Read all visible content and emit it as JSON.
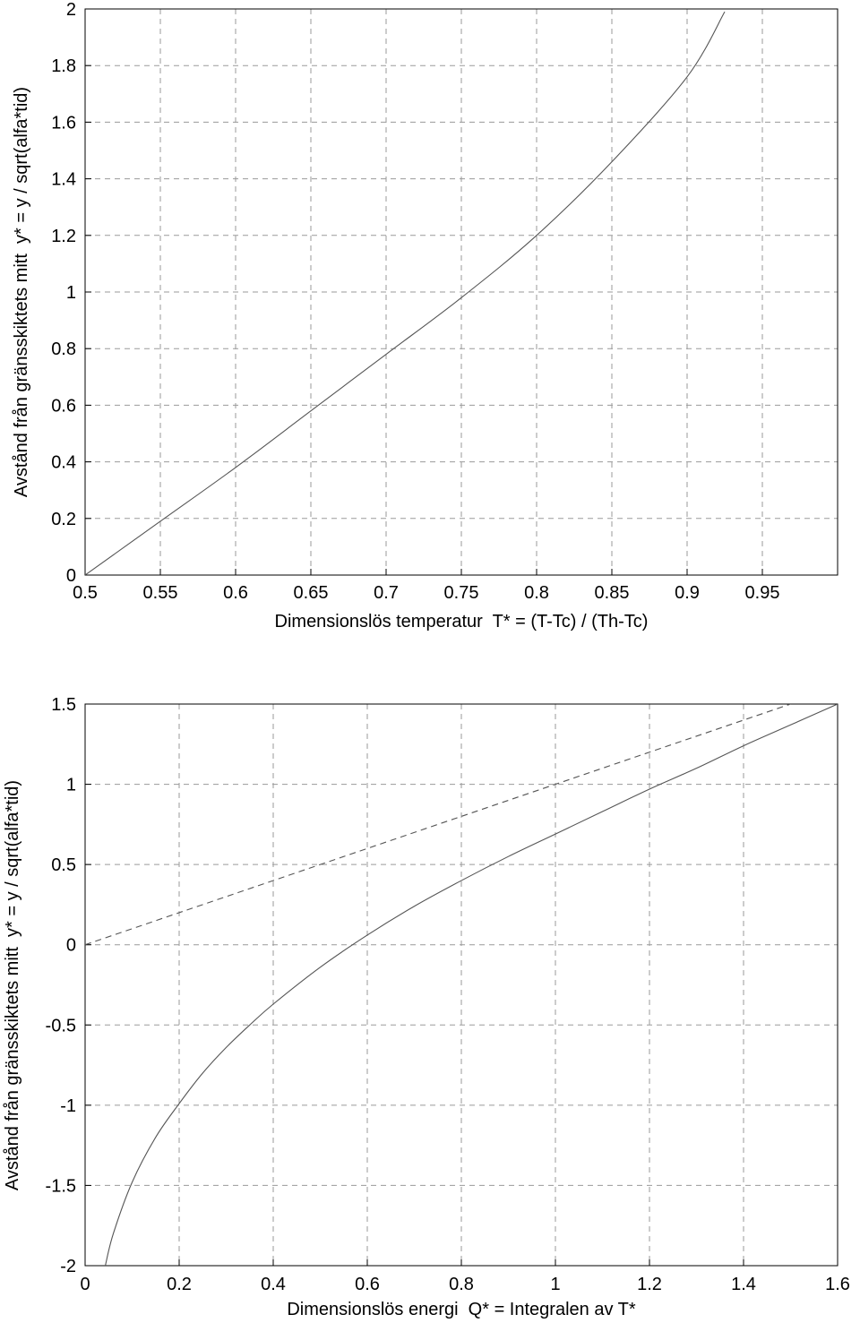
{
  "chart_data": [
    {
      "type": "line",
      "title": "",
      "xlabel": "Dimensionslös temperatur  T* = (T-Tc) / (Th-Tc)",
      "ylabel": "Avstånd från gränsskiktets mitt  y* = y / sqrt(alfa*tid)",
      "xlim": [
        0.5,
        1.0
      ],
      "ylim": [
        0,
        2
      ],
      "xticks": [
        "0.5",
        "0.55",
        "0.6",
        "0.65",
        "0.7",
        "0.75",
        "0.8",
        "0.85",
        "0.9",
        "0.95"
      ],
      "xtick_values": [
        0.5,
        0.55,
        0.6,
        0.65,
        0.7,
        0.75,
        0.8,
        0.85,
        0.9,
        0.95
      ],
      "yticks": [
        "0",
        "0.2",
        "0.4",
        "0.6",
        "0.8",
        "1",
        "1.2",
        "1.4",
        "1.6",
        "1.8",
        "2"
      ],
      "ytick_values": [
        0,
        0.2,
        0.4,
        0.6,
        0.8,
        1.0,
        1.2,
        1.4,
        1.6,
        1.8,
        2.0
      ],
      "grid": true,
      "series": [
        {
          "style": "solid",
          "x": [
            0.5,
            0.55,
            0.6,
            0.65,
            0.7,
            0.75,
            0.8,
            0.85,
            0.9,
            0.925
          ],
          "y": [
            0.0,
            0.19,
            0.38,
            0.58,
            0.78,
            0.98,
            1.2,
            1.46,
            1.76,
            1.99
          ]
        }
      ]
    },
    {
      "type": "line",
      "title": "",
      "xlabel": "Dimensionslös energi  Q* = Integralen av T*",
      "ylabel": "Avstånd från gränsskiktets mitt  y* = y / sqrt(alfa*tid)",
      "xlim": [
        0,
        1.6
      ],
      "ylim": [
        -2,
        1.5
      ],
      "xticks": [
        "0",
        "0.2",
        "0.4",
        "0.6",
        "0.8",
        "1",
        "1.2",
        "1.4",
        "1.6"
      ],
      "xtick_values": [
        0,
        0.2,
        0.4,
        0.6,
        0.8,
        1.0,
        1.2,
        1.4,
        1.6
      ],
      "yticks": [
        "1.5",
        "1",
        "0.5",
        "0",
        "-0.5",
        "-1",
        "-1.5",
        "-2"
      ],
      "ytick_values": [
        1.5,
        1.0,
        0.5,
        0.0,
        -0.5,
        -1.0,
        -1.5,
        -2.0
      ],
      "grid": true,
      "series": [
        {
          "style": "solid",
          "x": [
            0.043,
            0.06,
            0.1,
            0.15,
            0.2,
            0.25,
            0.3,
            0.35,
            0.4,
            0.5,
            0.6,
            0.7,
            0.8,
            0.9,
            1.0,
            1.1,
            1.2,
            1.3,
            1.4,
            1.5,
            1.6
          ],
          "y": [
            -2.0,
            -1.8,
            -1.48,
            -1.2,
            -0.99,
            -0.8,
            -0.64,
            -0.5,
            -0.37,
            -0.14,
            0.06,
            0.24,
            0.4,
            0.55,
            0.69,
            0.83,
            0.97,
            1.1,
            1.24,
            1.37,
            1.5
          ]
        },
        {
          "style": "dashed",
          "x": [
            0.0,
            1.5
          ],
          "y": [
            0.0,
            1.5
          ]
        }
      ]
    }
  ]
}
